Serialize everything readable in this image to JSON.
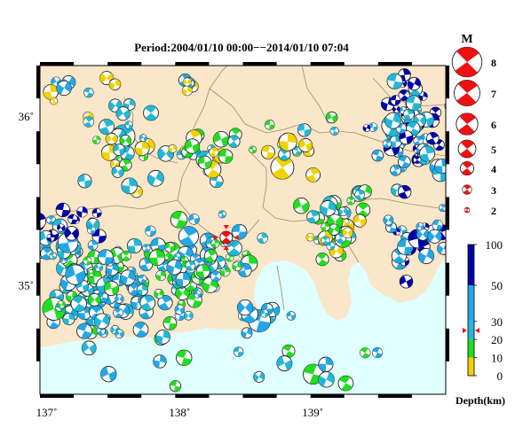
{
  "map": {
    "period": "Period:2004/01/10 00:00−−2014/01/10 07:04",
    "lon_ticks": [
      {
        "value": 137,
        "label": "137˚"
      },
      {
        "value": 138,
        "label": "138˚"
      },
      {
        "value": 139,
        "label": "139˚"
      }
    ],
    "lat_ticks": [
      {
        "value": 36,
        "label": "36˚"
      },
      {
        "value": 35,
        "label": "35˚"
      }
    ],
    "extent": {
      "lon": [
        136.95,
        140.0
      ],
      "lat": [
        34.35,
        36.3
      ]
    },
    "colors": {
      "land": "#fae6c8",
      "sea": "#e0ffff",
      "depth_0_10": "#f0d200",
      "depth_10_20": "#22dd22",
      "depth_20_30": "#22b8d8",
      "depth_30_50": "#22a8e8",
      "depth_50_100": "#0000aa",
      "focus": "#ee1111"
    },
    "focus_event": {
      "lon": 138.35,
      "lat": 35.28,
      "magnitude": 4
    }
  },
  "magnitude_legend": {
    "title": "M",
    "entries": [
      {
        "label": "8",
        "value": 8
      },
      {
        "label": "7",
        "value": 7
      },
      {
        "label": "6",
        "value": 6
      },
      {
        "label": "5",
        "value": 5
      },
      {
        "label": "4",
        "value": 4
      },
      {
        "label": "3",
        "value": 3
      },
      {
        "label": "2",
        "value": 2
      }
    ]
  },
  "depth_scale": {
    "title": "Depth(km)",
    "marker_depth": 25,
    "ticks": [
      {
        "label": "100",
        "value": 100
      },
      {
        "label": "50",
        "value": 50
      },
      {
        "label": "30",
        "value": 30
      },
      {
        "label": "20",
        "value": 20
      },
      {
        "label": "10",
        "value": 10
      },
      {
        "label": "0",
        "value": 0
      }
    ]
  }
}
